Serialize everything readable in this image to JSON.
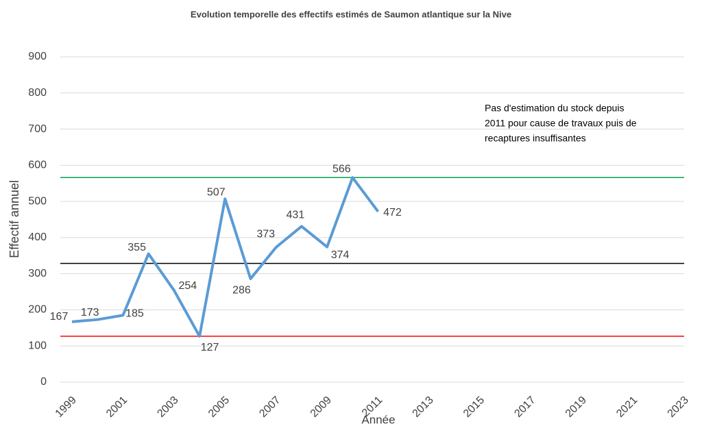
{
  "chart_data": {
    "type": "line",
    "title": "Evolution temporelle des effectifs estimés de Saumon atlantique sur la Nive",
    "x_label": "Année",
    "y_label": "Effectif annuel",
    "x": [
      1999,
      2000,
      2001,
      2002,
      2003,
      2004,
      2005,
      2006,
      2007,
      2008,
      2009,
      2010,
      2011
    ],
    "series": [
      {
        "color": "#5b9bd5",
        "values": [
          167,
          173,
          185,
          355,
          254,
          127,
          507,
          286,
          373,
          431,
          374,
          566,
          472
        ]
      }
    ],
    "reference_lines": [
      {
        "value": 127,
        "color": "#ff0000"
      },
      {
        "value": 328.5,
        "color": "#000000"
      },
      {
        "value": 566,
        "color": "#00a050"
      }
    ],
    "xlim": [
      1999,
      2023
    ],
    "xticks": [
      1999,
      2001,
      2003,
      2005,
      2007,
      2009,
      2011,
      2013,
      2015,
      2017,
      2019,
      2021,
      2023
    ],
    "ylim": [
      0,
      900
    ],
    "yticks": [
      0,
      100,
      200,
      300,
      400,
      500,
      600,
      700,
      800,
      900
    ],
    "grid": true,
    "annotation": [
      "Pas d'estimation du stock depuis",
      "2011 pour cause de travaux puis de",
      "recaptures insuffisantes"
    ]
  }
}
